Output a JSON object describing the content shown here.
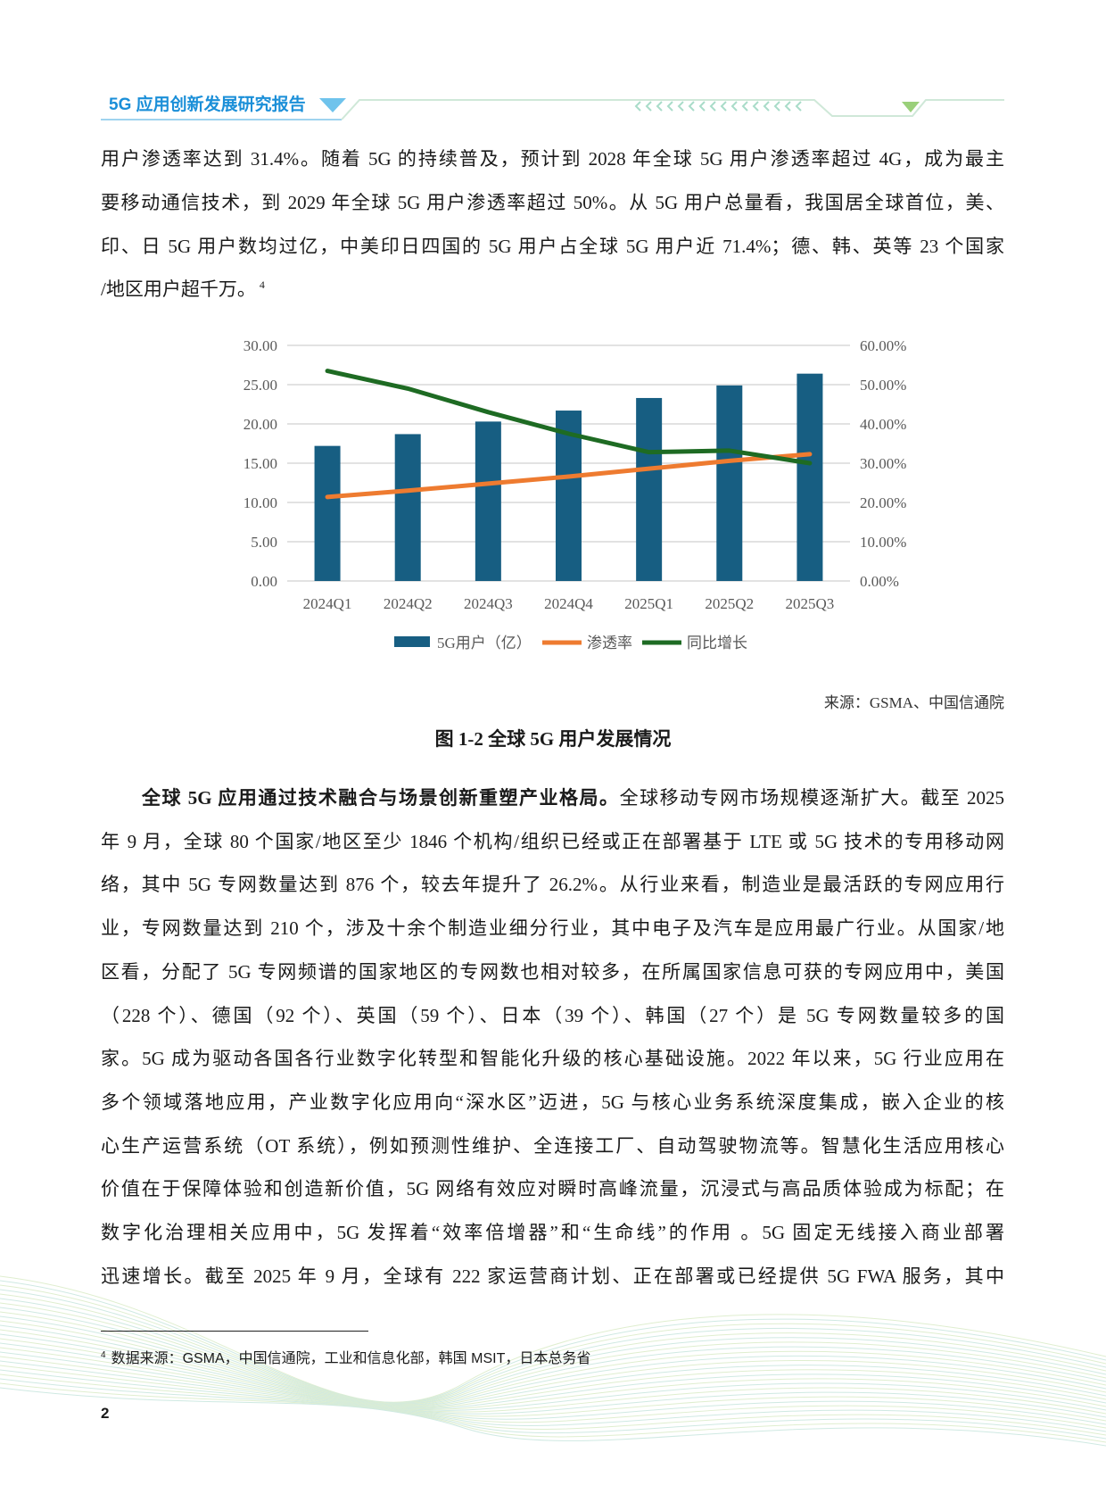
{
  "header": {
    "title": "5G 应用创新发展研究报告",
    "accent_color": "#1b8fd8"
  },
  "para1_lines": [
    "用户渗透率达到 31.4%。随着 5G 的持续普及，预计到 2028 年全球 5G 用户渗透率超过 4G，成为最主",
    "要移动通信技术，到 2029 年全球 5G 用户渗透率超过 50%。从 5G 用户总量看，我国居全球首位，美、",
    "印、日 5G 用户数均过亿，中美印日四国的 5G 用户占全球 5G 用户近 71.4%；德、韩、英等 23 个国家",
    "/地区用户超千万。"
  ],
  "para1_footnote_ref": "4",
  "chart_data": {
    "type": "bar",
    "categories": [
      "2024Q1",
      "2024Q2",
      "2024Q3",
      "2024Q4",
      "2025Q1",
      "2025Q2",
      "2025Q3"
    ],
    "series": [
      {
        "name": "5G用户（亿）",
        "type": "bar",
        "axis": "left",
        "color": "#175e82",
        "values": [
          17.2,
          18.7,
          20.3,
          21.7,
          23.3,
          24.9,
          26.4
        ]
      },
      {
        "name": "渗透率",
        "type": "line",
        "axis": "right",
        "color": "#ee7b30",
        "values": [
          21.4,
          23.0,
          24.8,
          26.6,
          28.6,
          30.6,
          32.3
        ]
      },
      {
        "name": "同比增长",
        "type": "line",
        "axis": "right",
        "color": "#1e6b23",
        "values": [
          53.5,
          49.0,
          43.0,
          37.5,
          32.8,
          33.2,
          30.0
        ]
      }
    ],
    "ylim_left": [
      0,
      30
    ],
    "ylim_right": [
      0,
      60
    ],
    "left_ticks": [
      "0.00",
      "5.00",
      "10.00",
      "15.00",
      "20.00",
      "25.00",
      "30.00"
    ],
    "right_ticks": [
      "0.00%",
      "10.00%",
      "20.00%",
      "30.00%",
      "40.00%",
      "50.00%",
      "60.00%"
    ],
    "grid": true,
    "legend_placement": "bottom"
  },
  "source": "来源：GSMA、中国信通院",
  "figure_caption": "图 1-2  全球 5G 用户发展情况",
  "para2_bold": "全球 5G 应用通过技术融合与场景创新重塑产业格局。",
  "para2_lines": [
    "全球移动专网市场规模逐渐扩大。截至 2025",
    "年 9 月，全球 80 个国家/地区至少 1846 个机构/组织已经或正在部署基于 LTE 或 5G 技术的专用移动网",
    "络，其中 5G 专网数量达到 876 个，较去年提升了 26.2%。从行业来看，制造业是最活跃的专网应用行",
    "业，专网数量达到 210 个，涉及十余个制造业细分行业，其中电子及汽车是应用最广行业。从国家/地",
    "区看，分配了 5G 专网频谱的国家地区的专网数也相对较多，在所属国家信息可获的专网应用中，美国",
    "（228 个）、德国（92 个）、英国（59 个）、日本（39 个）、韩国（27 个）是 5G 专网数量较多的国",
    "家。5G 成为驱动各国各行业数字化转型和智能化升级的核心基础设施。2022 年以来，5G 行业应用在",
    "多个领域落地应用，产业数字化应用向“深水区”迈进，5G 与核心业务系统深度集成，嵌入企业的核",
    "心生产运营系统（OT 系统），例如预测性维护、全连接工厂、自动驾驶物流等。智慧化生活应用核心",
    "价值在于保障体验和创造新价值，5G 网络有效应对瞬时高峰流量，沉浸式与高品质体验成为标配；在",
    "数字化治理相关应用中，5G 发挥着“效率倍增器”和“生命线”的作用 。5G 固定无线接入商业部署",
    "迅速增长。截至 2025 年 9 月，全球有 222 家运营商计划、正在部署或已经提供 5G FWA 服务，其中"
  ],
  "footnote": {
    "number": "4",
    "text": "数据来源：GSMA，中国信通院，工业和信息化部，韩国 MSIT，日本总务省"
  },
  "page_number": "2"
}
